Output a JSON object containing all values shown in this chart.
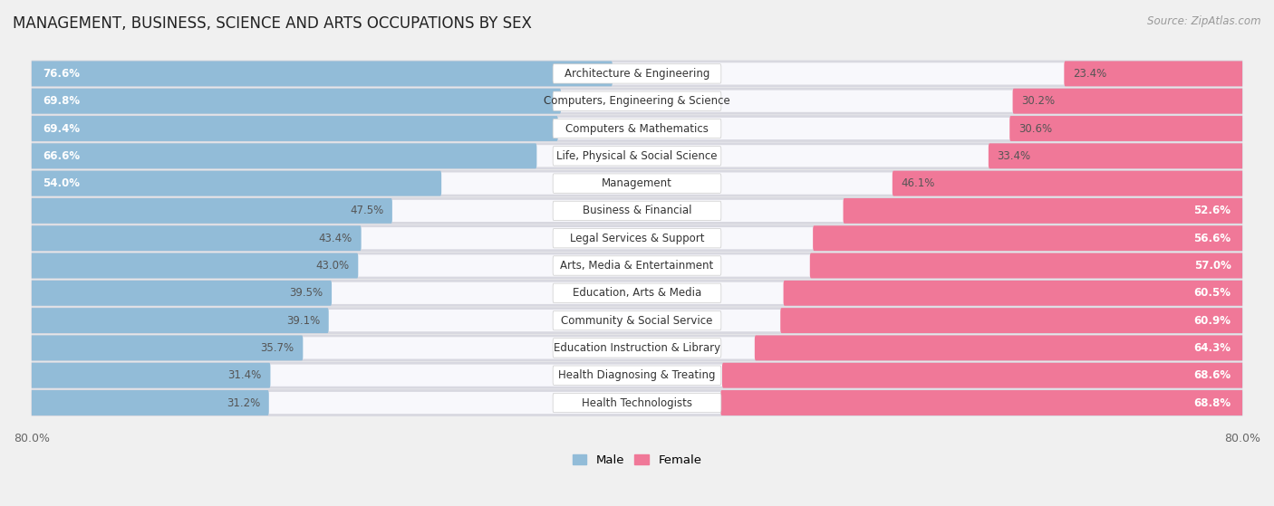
{
  "title": "MANAGEMENT, BUSINESS, SCIENCE AND ARTS OCCUPATIONS BY SEX",
  "source": "Source: ZipAtlas.com",
  "categories": [
    "Architecture & Engineering",
    "Computers, Engineering & Science",
    "Computers & Mathematics",
    "Life, Physical & Social Science",
    "Management",
    "Business & Financial",
    "Legal Services & Support",
    "Arts, Media & Entertainment",
    "Education, Arts & Media",
    "Community & Social Service",
    "Education Instruction & Library",
    "Health Diagnosing & Treating",
    "Health Technologists"
  ],
  "male_pct": [
    76.6,
    69.8,
    69.4,
    66.6,
    54.0,
    47.5,
    43.4,
    43.0,
    39.5,
    39.1,
    35.7,
    31.4,
    31.2
  ],
  "female_pct": [
    23.4,
    30.2,
    30.6,
    33.4,
    46.1,
    52.6,
    56.6,
    57.0,
    60.5,
    60.9,
    64.3,
    68.6,
    68.8
  ],
  "male_color": "#92bcd8",
  "female_color": "#f07898",
  "bg_color": "#f0f0f0",
  "bar_bg_color": "#e8e8e8",
  "row_bg_color": "#e0e0e8",
  "axis_limit": 80.0,
  "bar_height": 0.62,
  "label_fontsize": 8.5,
  "cat_fontsize": 8.5,
  "title_fontsize": 12,
  "source_fontsize": 8.5,
  "pct_inside_threshold": 50
}
